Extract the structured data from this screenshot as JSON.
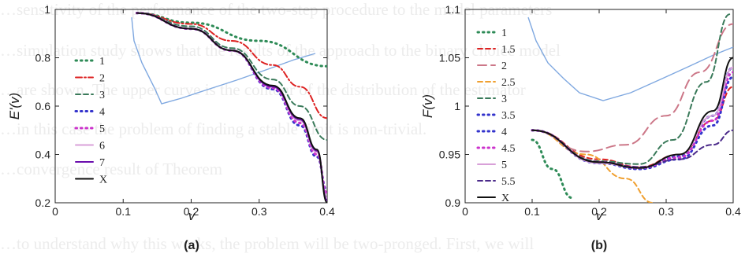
{
  "background_text": [
    "…sensitivity of the performance of the two-step procedure to the model parameters",
    "…simulation study shows that the results of the approach to the binary choice model",
    "…are shown. The upper curve is the contour of the distribution of the estimator",
    "…in this case the problem of finding a stable limit is non-trivial.",
    "…convergence result of Theorem",
    "…to understand why this works, the problem will be two-pronged. First, we will"
  ],
  "chart_data": [
    {
      "panel_label": "(a)",
      "type": "line",
      "xlabel": "v",
      "ylabel": "E'(v)",
      "xlim": [
        0,
        0.4
      ],
      "ylim": [
        0.2,
        1.0
      ],
      "xticks": [
        "0",
        "0.1",
        "0.2",
        "0.3",
        "0.4"
      ],
      "yticks": [
        "0.2",
        "0.4",
        "0.6",
        "0.8",
        "1"
      ],
      "legend_position": "left",
      "series": [
        {
          "name": "1",
          "color": "#2e8b57",
          "dash": "dots",
          "x": [
            0.12,
            0.2,
            0.3,
            0.4
          ],
          "y": [
            0.985,
            0.945,
            0.87,
            0.765
          ]
        },
        {
          "name": "2",
          "color": "#dd2222",
          "dash": "dashdot",
          "x": [
            0.12,
            0.2,
            0.26,
            0.32,
            0.36,
            0.4
          ],
          "y": [
            0.985,
            0.94,
            0.87,
            0.77,
            0.68,
            0.55
          ]
        },
        {
          "name": "3",
          "color": "#3a7a5a",
          "dash": "dash",
          "x": [
            0.12,
            0.2,
            0.26,
            0.32,
            0.36,
            0.4
          ],
          "y": [
            0.985,
            0.93,
            0.84,
            0.71,
            0.6,
            0.46
          ]
        },
        {
          "name": "4",
          "color": "#3333cc",
          "dash": "dots",
          "x": [
            0.12,
            0.2,
            0.26,
            0.32,
            0.36,
            0.385,
            0.4
          ],
          "y": [
            0.985,
            0.92,
            0.83,
            0.67,
            0.52,
            0.39,
            0.25
          ]
        },
        {
          "name": "5",
          "color": "#cc33cc",
          "dash": "dots",
          "x": [
            0.12,
            0.2,
            0.26,
            0.32,
            0.36,
            0.385,
            0.4
          ],
          "y": [
            0.985,
            0.92,
            0.83,
            0.675,
            0.53,
            0.4,
            0.24
          ]
        },
        {
          "name": "6",
          "color": "#d8a0d8",
          "dash": "solid",
          "x": [
            0.12,
            0.2,
            0.26,
            0.32,
            0.36,
            0.385,
            0.4
          ],
          "y": [
            0.985,
            0.92,
            0.83,
            0.68,
            0.54,
            0.41,
            0.22
          ]
        },
        {
          "name": "7",
          "color": "#6a0dad",
          "dash": "solid",
          "x": [
            0.12,
            0.2,
            0.26,
            0.32,
            0.36,
            0.385,
            0.4
          ],
          "y": [
            0.985,
            0.92,
            0.83,
            0.68,
            0.545,
            0.415,
            0.21
          ]
        },
        {
          "name": "X",
          "color": "#111111",
          "dash": "solid",
          "x": [
            0.12,
            0.2,
            0.26,
            0.32,
            0.36,
            0.385,
            0.4
          ],
          "y": [
            0.985,
            0.92,
            0.83,
            0.685,
            0.55,
            0.42,
            0.2
          ]
        }
      ]
    },
    {
      "panel_label": "(b)",
      "type": "line",
      "xlabel": "v",
      "ylabel": "F(v)",
      "xlim": [
        0,
        0.4
      ],
      "ylim": [
        0.9,
        1.1
      ],
      "xticks": [
        "0",
        "0.1",
        "0.2",
        "0.3",
        "0.4"
      ],
      "yticks": [
        "0.9",
        "0.95",
        "1",
        "1.05",
        "1.1"
      ],
      "legend_position": "left",
      "series": [
        {
          "name": "1",
          "color": "#2e8b57",
          "dash": "dots",
          "x": [
            0.1,
            0.13,
            0.16
          ],
          "y": [
            0.965,
            0.935,
            0.905
          ]
        },
        {
          "name": "1.5",
          "color": "#dd2222",
          "dash": "dash",
          "x": [
            0.1,
            0.2,
            0.26,
            0.32,
            0.37,
            0.4
          ],
          "y": [
            0.975,
            0.945,
            0.937,
            0.95,
            0.985,
            1.02
          ]
        },
        {
          "name": "2",
          "color": "#cc7788",
          "dash": "longdash",
          "x": [
            0.1,
            0.18,
            0.24,
            0.3,
            0.35,
            0.4
          ],
          "y": [
            0.975,
            0.953,
            0.96,
            0.99,
            1.035,
            1.085
          ]
        },
        {
          "name": "2.5",
          "color": "#f0a030",
          "dash": "dash",
          "x": [
            0.1,
            0.18,
            0.24,
            0.28
          ],
          "y": [
            0.975,
            0.95,
            0.925,
            0.9
          ]
        },
        {
          "name": "3",
          "color": "#3a7a5a",
          "dash": "dash",
          "x": [
            0.1,
            0.2,
            0.26,
            0.31,
            0.36,
            0.395
          ],
          "y": [
            0.975,
            0.943,
            0.94,
            0.965,
            1.025,
            1.095
          ]
        },
        {
          "name": "3.5",
          "color": "#3333cc",
          "dash": "dots",
          "x": [
            0.1,
            0.2,
            0.26,
            0.32,
            0.37,
            0.4
          ],
          "y": [
            0.975,
            0.942,
            0.935,
            0.948,
            0.99,
            1.04
          ]
        },
        {
          "name": "4",
          "color": "#3333cc",
          "dash": "dots",
          "x": [
            0.1,
            0.2,
            0.26,
            0.32,
            0.37,
            0.4
          ],
          "y": [
            0.975,
            0.941,
            0.935,
            0.945,
            0.98,
            1.03
          ]
        },
        {
          "name": "4.5",
          "color": "#cc33cc",
          "dash": "dots",
          "x": [
            0.1,
            0.2,
            0.26,
            0.32,
            0.37,
            0.4
          ],
          "y": [
            0.975,
            0.942,
            0.936,
            0.947,
            0.985,
            1.035
          ]
        },
        {
          "name": "5",
          "color": "#d8a0d8",
          "dash": "solid",
          "x": [
            0.1,
            0.2,
            0.26,
            0.32,
            0.37,
            0.4
          ],
          "y": [
            0.975,
            0.941,
            0.936,
            0.95,
            0.99,
            1.04
          ]
        },
        {
          "name": "5.5",
          "color": "#4b2a8a",
          "dash": "dash",
          "x": [
            0.1,
            0.2,
            0.26,
            0.32,
            0.37,
            0.4
          ],
          "y": [
            0.975,
            0.942,
            0.937,
            0.945,
            0.96,
            0.975
          ]
        },
        {
          "name": "X",
          "color": "#111111",
          "dash": "solid",
          "x": [
            0.1,
            0.2,
            0.26,
            0.32,
            0.37,
            0.4
          ],
          "y": [
            0.975,
            0.942,
            0.936,
            0.95,
            0.995,
            1.05
          ]
        }
      ]
    }
  ]
}
